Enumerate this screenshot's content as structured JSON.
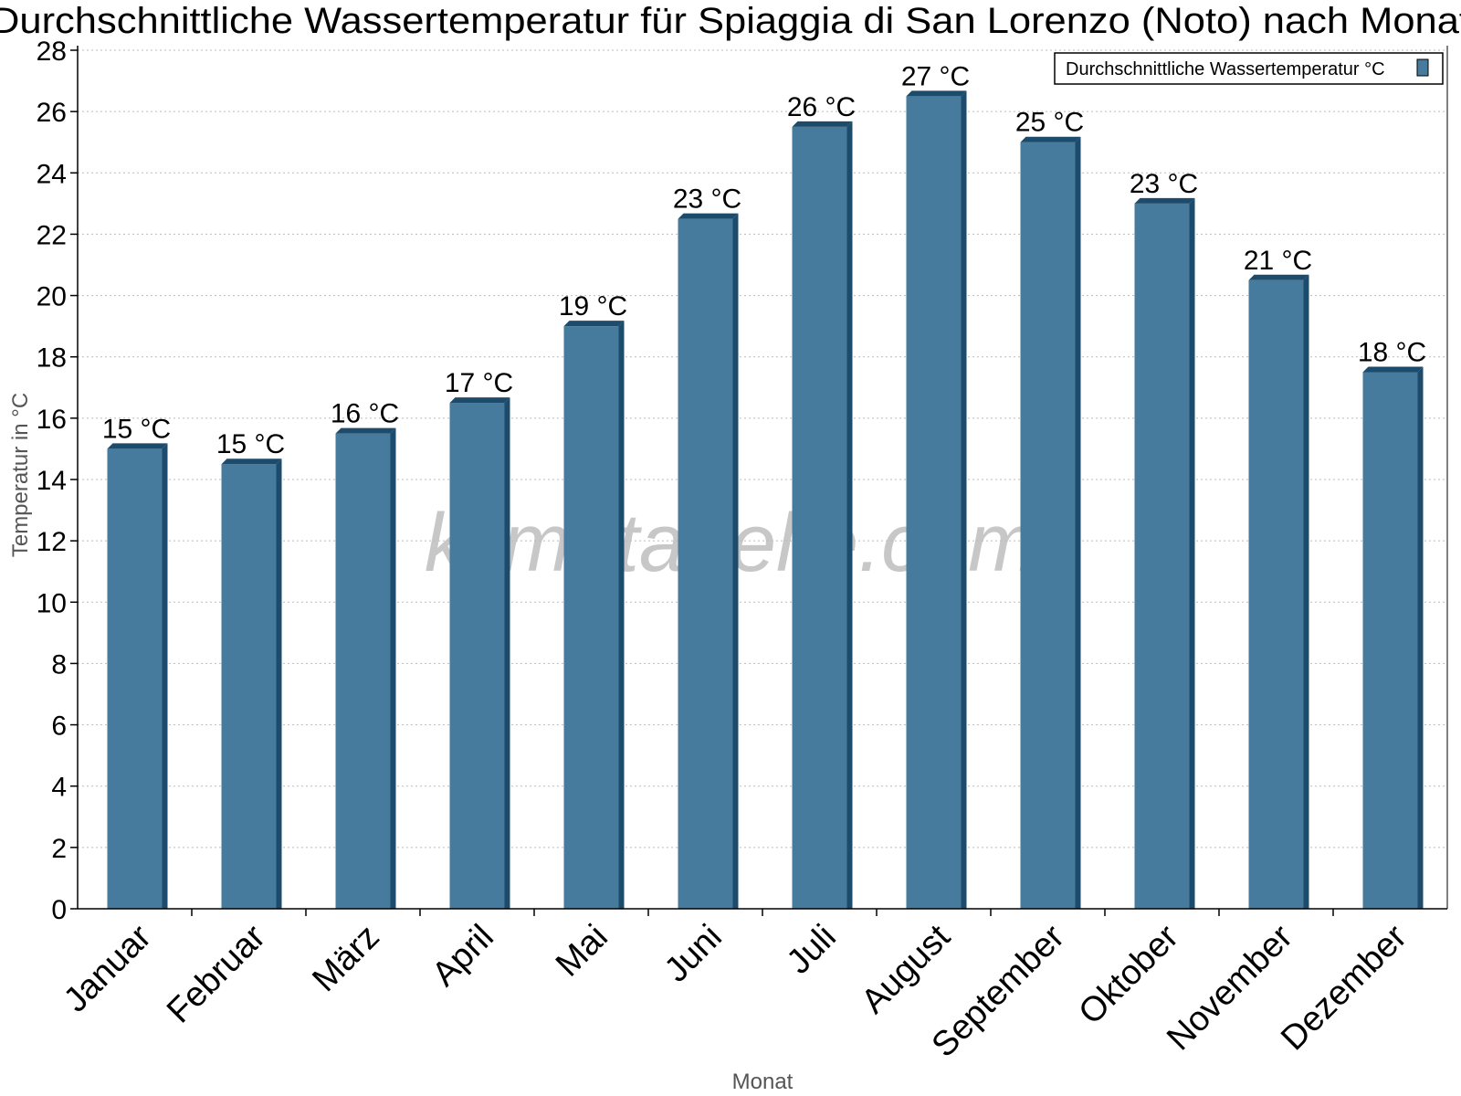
{
  "chart_data": {
    "type": "bar",
    "title": "Durchschnittliche Wassertemperatur für Spiaggia di San Lorenzo (Noto) nach Monat",
    "xlabel": "Monat",
    "ylabel": "Temperatur in °C",
    "ylim": [
      0,
      28
    ],
    "y_ticks": [
      "0",
      "2",
      "4",
      "6",
      "8",
      "10",
      "12",
      "14",
      "16",
      "18",
      "20",
      "22",
      "24",
      "26",
      "28"
    ],
    "grid": "horizontal dotted",
    "legend_position": "top-right",
    "categories": [
      "Januar",
      "Februar",
      "März",
      "April",
      "Mai",
      "Juni",
      "Juli",
      "August",
      "September",
      "Oktober",
      "November",
      "Dezember"
    ],
    "series": [
      {
        "name": "Durchschnittliche Wassertemperatur °C",
        "color": "#467b9d",
        "dark_color": "#1d4b6b",
        "values": [
          15.0,
          14.5,
          15.5,
          16.5,
          19.0,
          22.5,
          25.5,
          26.5,
          25.0,
          23.0,
          20.5,
          17.5
        ],
        "data_labels": [
          "15 °C",
          "15 °C",
          "16 °C",
          "17 °C",
          "19 °C",
          "23 °C",
          "26 °C",
          "27 °C",
          "25 °C",
          "23 °C",
          "21 °C",
          "18 °C"
        ]
      }
    ],
    "watermark": "klimatabelle.com"
  }
}
